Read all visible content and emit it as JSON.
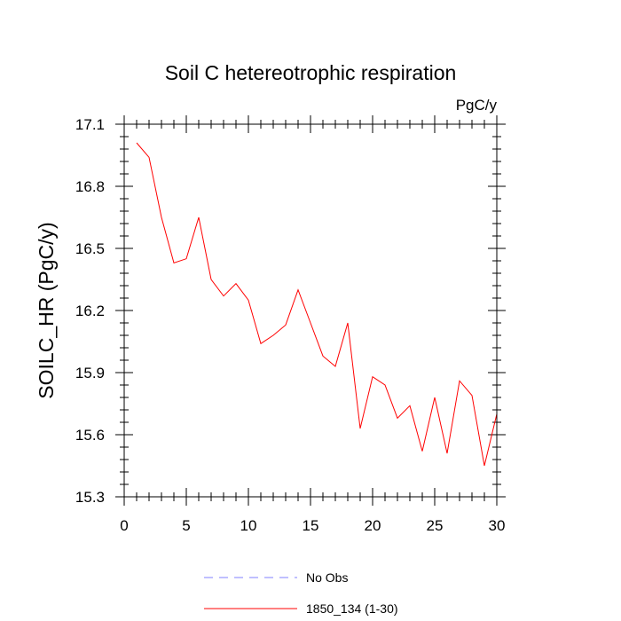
{
  "chart_data": {
    "type": "line",
    "title": "Soil C hetereotrophic respiration",
    "units_label": "PgC/y",
    "xlabel": "",
    "ylabel": "SOILC_HR  (PgC/y)",
    "xlim": [
      0,
      30
    ],
    "ylim": [
      15.3,
      17.1
    ],
    "xticks": [
      0,
      5,
      10,
      15,
      20,
      25,
      30
    ],
    "yticks": [
      15.3,
      15.6,
      15.9,
      16.2,
      16.5,
      16.8,
      17.1
    ],
    "ytick_labels": [
      "15.3",
      "15.6",
      "15.9",
      "16.2",
      "16.5",
      "16.8",
      "17.1"
    ],
    "grid": false,
    "legend_position": "bottom",
    "series": [
      {
        "name": "No Obs",
        "color": "#8080ff",
        "dash": "dashed",
        "x": [],
        "values": []
      },
      {
        "name": "1850_134 (1-30)",
        "color": "#ff0000",
        "dash": "solid",
        "x": [
          1,
          2,
          3,
          4,
          5,
          6,
          7,
          8,
          9,
          10,
          11,
          12,
          13,
          14,
          15,
          16,
          17,
          18,
          19,
          20,
          21,
          22,
          23,
          24,
          25,
          26,
          27,
          28,
          29,
          30
        ],
        "values": [
          17.01,
          16.94,
          16.65,
          16.43,
          16.45,
          16.65,
          16.35,
          16.27,
          16.33,
          16.25,
          16.04,
          16.08,
          16.13,
          16.3,
          16.14,
          15.98,
          15.93,
          16.14,
          15.63,
          15.88,
          15.84,
          15.68,
          15.74,
          15.52,
          15.78,
          15.51,
          15.86,
          15.79,
          15.45,
          15.7
        ]
      }
    ]
  }
}
